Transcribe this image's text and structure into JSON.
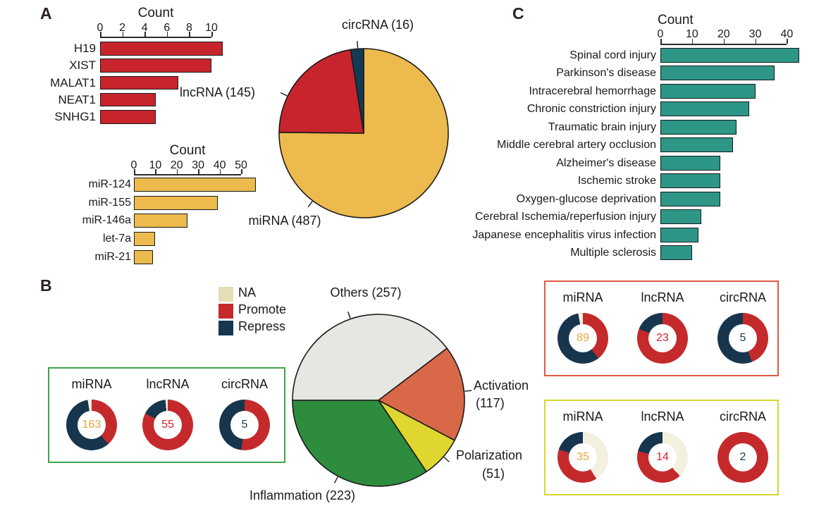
{
  "panels": {
    "a": "A",
    "b": "B",
    "c": "C"
  },
  "colors": {
    "mirna_yellow": "#EDBB4D",
    "lncrna_red": "#C8242C",
    "circrna_navy": "#143B55",
    "teal": "#2D9687",
    "others_gray": "#E6E6E3",
    "activation_orange": "#D96848",
    "polarization_yellow": "#DFD630",
    "inflammation_green": "#2E8C3D",
    "na_legend": "#E5DDB5",
    "na_donut": "#F3F0DF",
    "promote": "#C42A2C",
    "repress": "#17364E",
    "count_mirna": "#E8A63C",
    "count_lncrna": "#D2242B",
    "count_circrna": "#1C3D5C",
    "box_green": "#3FA24A",
    "box_red": "#E05A43",
    "box_yellow": "#D9D630",
    "stroke": "#1a1a1a"
  },
  "legend": {
    "items": [
      {
        "label": "NA",
        "color": "#E5DDB5"
      },
      {
        "label": "Promote",
        "color": "#C42A2C"
      },
      {
        "label": "Repress",
        "color": "#17364E"
      }
    ]
  },
  "chart_data": [
    {
      "id": "panel_a_lncrna_counts",
      "type": "bar",
      "orientation": "horizontal",
      "title": "Count",
      "categories": [
        "H19",
        "XIST",
        "MALAT1",
        "NEAT1",
        "SNHG1"
      ],
      "values": [
        11,
        10,
        7,
        5,
        5
      ],
      "xlim": [
        0,
        10
      ],
      "xticks": [
        0,
        2,
        4,
        6,
        8,
        10
      ],
      "bar_color": "#C8242C"
    },
    {
      "id": "panel_a_mirna_counts",
      "type": "bar",
      "orientation": "horizontal",
      "title": "Count",
      "categories": [
        "miR-124",
        "miR-155",
        "miR-146a",
        "let-7a",
        "miR-21"
      ],
      "values": [
        57,
        39,
        25,
        10,
        9
      ],
      "xlim": [
        0,
        50
      ],
      "xticks": [
        0,
        10,
        20,
        30,
        40,
        50
      ],
      "bar_color": "#EDBB4D"
    },
    {
      "id": "panel_a_rna_pie",
      "type": "pie",
      "labels": [
        "miRNA (487)",
        "lncRNA (145)",
        "circRNA (16)"
      ],
      "label_lines": [
        [
          "miRNA (487)"
        ],
        [
          "lncRNA (145)"
        ],
        [
          "circRNA (16)"
        ]
      ],
      "values": [
        487,
        145,
        16
      ],
      "colors": [
        "#EDBB4D",
        "#C8242C",
        "#143B55"
      ],
      "start_angle_deg": 0,
      "direction": "clockwise"
    },
    {
      "id": "panel_b_function_pie",
      "type": "pie",
      "labels": [
        "Others (257)",
        "Activation (117)",
        "Polarization (51)",
        "Inflammation (223)"
      ],
      "label_lines": [
        [
          "Others (257)"
        ],
        [
          "Activation",
          "(117)"
        ],
        [
          "Polarization",
          "(51)"
        ],
        [
          "Inflammation (223)"
        ]
      ],
      "values": [
        257,
        117,
        51,
        223
      ],
      "colors": [
        "#E6E6E3",
        "#D96848",
        "#DFD630",
        "#2E8C3D"
      ],
      "start_angle_deg": 270,
      "direction": "clockwise"
    },
    {
      "id": "panel_b_inflammation_donuts",
      "type": "donut-group",
      "box_color": "#3FA24A",
      "charts": [
        {
          "label": "miRNA",
          "count": 163,
          "count_color": "#E8A63C",
          "segments": [
            {
              "key": "promote",
              "pct": 38.5
            },
            {
              "key": "repress",
              "pct": 59
            },
            {
              "key": "na",
              "pct": 2.5
            }
          ]
        },
        {
          "label": "lncRNA",
          "count": 55,
          "count_color": "#D2242B",
          "segments": [
            {
              "key": "promote",
              "pct": 82.5
            },
            {
              "key": "repress",
              "pct": 16
            },
            {
              "key": "na",
              "pct": 1.5
            }
          ]
        },
        {
          "label": "circRNA",
          "count": 5,
          "count_color": "#1C3D5C",
          "segments": [
            {
              "key": "promote",
              "pct": 52
            },
            {
              "key": "repress",
              "pct": 48
            }
          ]
        }
      ]
    },
    {
      "id": "panel_b_activation_donuts",
      "type": "donut-group",
      "box_color": "#E05A43",
      "charts": [
        {
          "label": "miRNA",
          "count": 89,
          "count_color": "#E8A63C",
          "segments": [
            {
              "key": "promote",
              "pct": 39.5
            },
            {
              "key": "repress",
              "pct": 57.5
            },
            {
              "key": "na",
              "pct": 3
            }
          ]
        },
        {
          "label": "lncRNA",
          "count": 23,
          "count_color": "#D2242B",
          "segments": [
            {
              "key": "promote",
              "pct": 81
            },
            {
              "key": "repress",
              "pct": 19
            }
          ]
        },
        {
          "label": "circRNA",
          "count": 5,
          "count_color": "#1C3D5C",
          "segments": [
            {
              "key": "promote",
              "pct": 44
            },
            {
              "key": "repress",
              "pct": 56
            }
          ]
        }
      ]
    },
    {
      "id": "panel_b_polarization_donuts",
      "type": "donut-group",
      "box_color": "#D9D630",
      "charts": [
        {
          "label": "miRNA",
          "count": 35,
          "count_color": "#E8A63C",
          "segments": [
            {
              "key": "na",
              "pct": 41
            },
            {
              "key": "promote",
              "pct": 39
            },
            {
              "key": "repress",
              "pct": 20
            }
          ]
        },
        {
          "label": "lncRNA",
          "count": 14,
          "count_color": "#D2242B",
          "segments": [
            {
              "key": "na",
              "pct": 38
            },
            {
              "key": "promote",
              "pct": 41
            },
            {
              "key": "repress",
              "pct": 21
            }
          ]
        },
        {
          "label": "circRNA",
          "count": 2,
          "count_color": "#1C3D5C",
          "segments": [
            {
              "key": "promote",
              "pct": 100
            }
          ]
        }
      ]
    },
    {
      "id": "panel_c_disease_counts",
      "type": "bar",
      "orientation": "horizontal",
      "title": "Count",
      "categories": [
        "Spinal cord injury",
        "Parkinson's disease",
        "Intracerebral hemorrhage",
        "Chronic constriction injury",
        "Traumatic brain injury",
        "Middle cerebral artery occlusion",
        "Alzheimer's disease",
        "Ischemic stroke",
        "Oxygen-glucose deprivation",
        "Cerebral Ischemia/reperfusion injury",
        "Japanese encephalitis virus infection",
        "Multiple sclerosis"
      ],
      "values": [
        44,
        36,
        30,
        28,
        24,
        23,
        19,
        19,
        19,
        13,
        12,
        10
      ],
      "xlim": [
        0,
        40
      ],
      "xticks": [
        0,
        10,
        20,
        30,
        40
      ],
      "bar_color": "#2D9687"
    }
  ]
}
